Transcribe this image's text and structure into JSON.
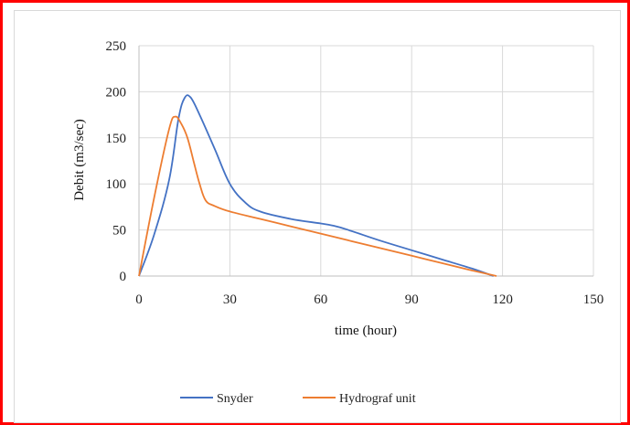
{
  "chart_data": {
    "type": "line",
    "title": "",
    "xlabel": "time (hour)",
    "ylabel": "Debit (m3/sec)",
    "xlim": [
      0,
      150
    ],
    "ylim": [
      0,
      250
    ],
    "xticks": [
      0,
      30,
      60,
      90,
      120,
      150
    ],
    "yticks": [
      0,
      50,
      100,
      150,
      200,
      250
    ],
    "grid": true,
    "legend_position": "bottom",
    "series": [
      {
        "name": "Snyder",
        "color": "#4472c4",
        "x": [
          0,
          5,
          10,
          13,
          15,
          17,
          20,
          25,
          30,
          35,
          40,
          50,
          60,
          65,
          70,
          80,
          90,
          100,
          110,
          117
        ],
        "y": [
          0,
          45,
          105,
          170,
          193,
          194,
          175,
          138,
          100,
          80,
          70,
          62,
          57,
          54,
          49,
          38,
          28,
          18,
          8,
          0
        ]
      },
      {
        "name": "Hydrograf unit",
        "color": "#ed7d31",
        "x": [
          0,
          5,
          10,
          12,
          14,
          16,
          18,
          20,
          22,
          25,
          30,
          40,
          50,
          60,
          70,
          80,
          90,
          100,
          110,
          118
        ],
        "y": [
          0,
          85,
          160,
          173,
          165,
          150,
          125,
          100,
          82,
          76,
          70,
          62,
          54,
          46,
          38,
          30,
          22,
          14,
          6,
          0
        ]
      }
    ]
  }
}
